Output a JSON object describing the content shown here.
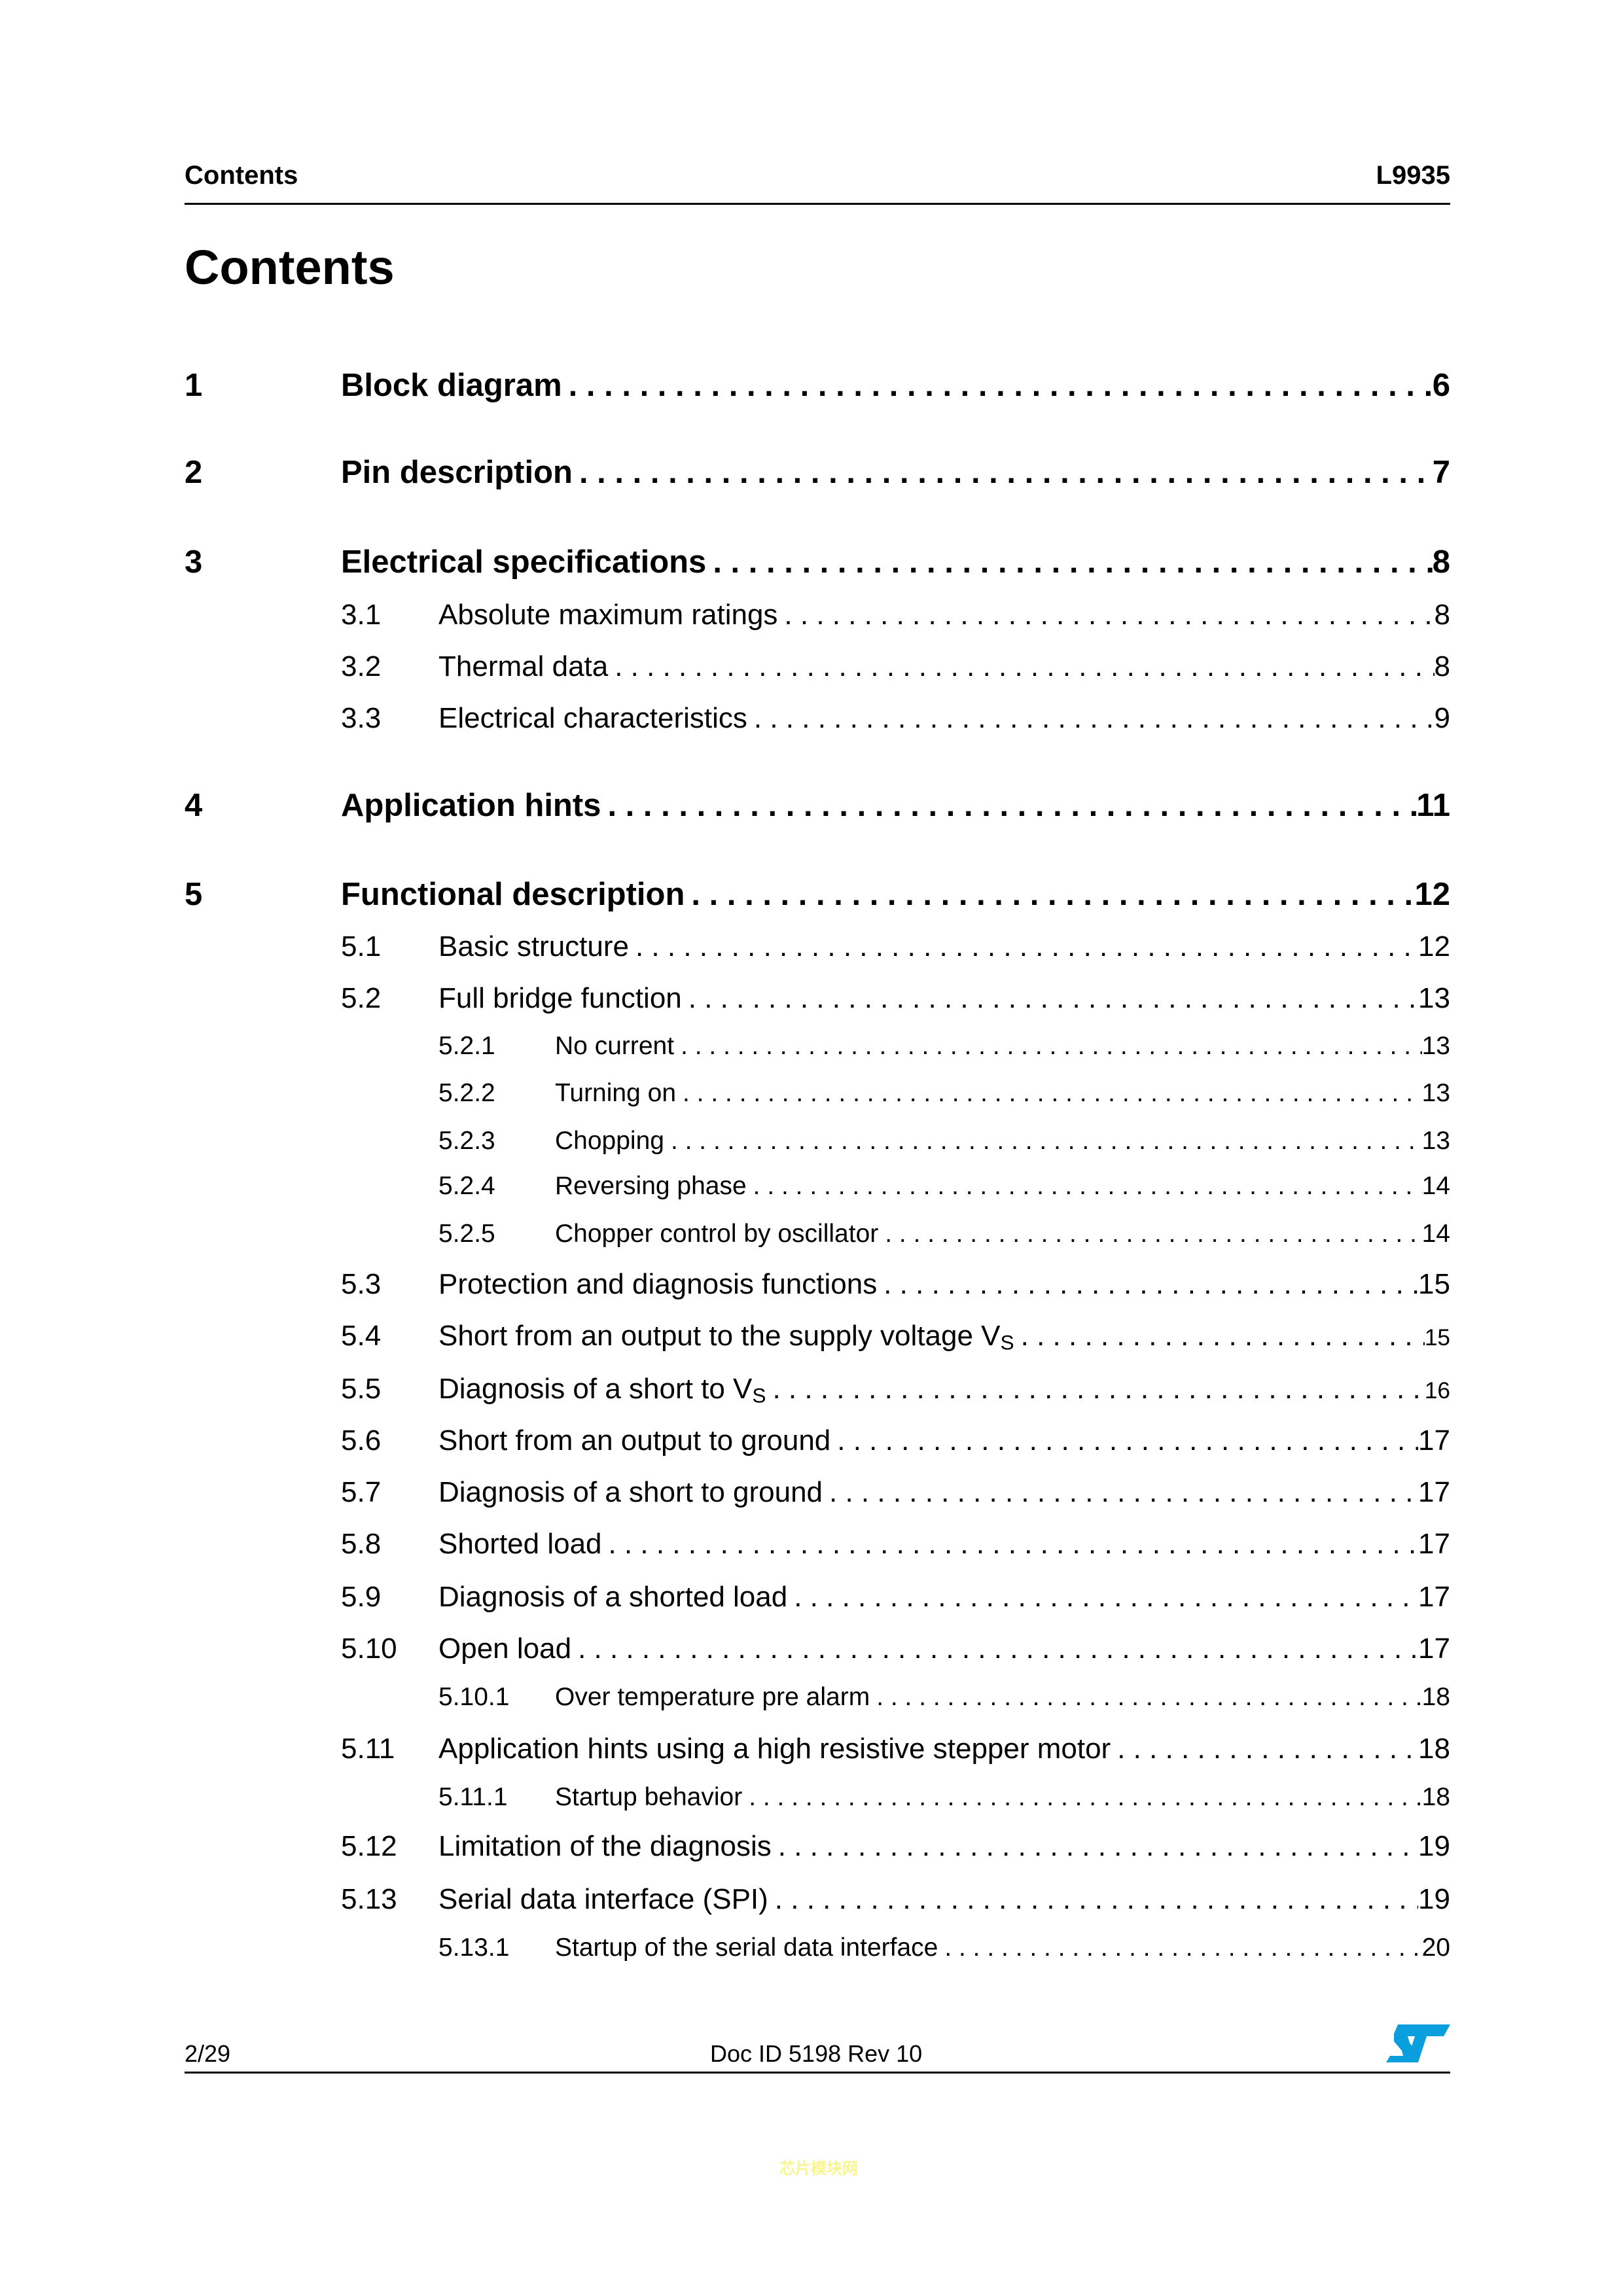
{
  "header": {
    "left": "Contents",
    "right": "L9935"
  },
  "page_title": "Contents",
  "toc": [
    {
      "level": 1,
      "number": "1",
      "title": "Block diagram",
      "page": "6"
    },
    {
      "level": 1,
      "number": "2",
      "title": "Pin description",
      "page": "7"
    },
    {
      "level": 1,
      "number": "3",
      "title": "Electrical specifications",
      "page": "8"
    },
    {
      "level": 2,
      "number": "3.1",
      "title": "Absolute maximum ratings",
      "page": "8"
    },
    {
      "level": 2,
      "number": "3.2",
      "title": "Thermal data",
      "page": "8"
    },
    {
      "level": 2,
      "number": "3.3",
      "title": "Electrical characteristics",
      "page": "9"
    },
    {
      "level": 1,
      "number": "4",
      "title": "Application hints",
      "page": "11"
    },
    {
      "level": 1,
      "number": "5",
      "title": "Functional description",
      "page": "12"
    },
    {
      "level": 2,
      "number": "5.1",
      "title": "Basic structure",
      "page": "12"
    },
    {
      "level": 2,
      "number": "5.2",
      "title": "Full bridge function",
      "page": "13"
    },
    {
      "level": 3,
      "number": "5.2.1",
      "title": "No current",
      "page": "13"
    },
    {
      "level": 3,
      "number": "5.2.2",
      "title": "Turning on",
      "page": "13"
    },
    {
      "level": 3,
      "number": "5.2.3",
      "title": "Chopping",
      "page": "13"
    },
    {
      "level": 3,
      "number": "5.2.4",
      "title": "Reversing phase",
      "page": "14"
    },
    {
      "level": 3,
      "number": "5.2.5",
      "title": "Chopper control by oscillator",
      "page": "14"
    },
    {
      "level": 2,
      "number": "5.3",
      "title": "Protection and diagnosis functions",
      "page": "15"
    },
    {
      "level": 2,
      "number": "5.4",
      "title": "Short from an output to the supply voltage V",
      "sub": "S",
      "page": "15"
    },
    {
      "level": 2,
      "number": "5.5",
      "title": "Diagnosis of a short to V",
      "sub": "S",
      "page": "16"
    },
    {
      "level": 2,
      "number": "5.6",
      "title": "Short from an output to ground",
      "page": "17"
    },
    {
      "level": 2,
      "number": "5.7",
      "title": "Diagnosis of a short to ground",
      "page": "17"
    },
    {
      "level": 2,
      "number": "5.8",
      "title": "Shorted load",
      "page": "17"
    },
    {
      "level": 2,
      "number": "5.9",
      "title": "Diagnosis of a shorted load",
      "page": "17"
    },
    {
      "level": 2,
      "number": "5.10",
      "title": "Open load",
      "page": "17"
    },
    {
      "level": 3,
      "number": "5.10.1",
      "title": "Over temperature pre alarm",
      "page": "18"
    },
    {
      "level": 2,
      "number": "5.11",
      "title": "Application hints using a high resistive stepper motor",
      "page": "18"
    },
    {
      "level": 3,
      "number": "5.11.1",
      "title": "Startup behavior",
      "page": "18"
    },
    {
      "level": 2,
      "number": "5.12",
      "title": "Limitation of the diagnosis",
      "page": "19"
    },
    {
      "level": 2,
      "number": "5.13",
      "title": "Serial data interface (SPI)",
      "page": "19"
    },
    {
      "level": 3,
      "number": "5.13.1",
      "title": "Startup of the serial data interface",
      "page": "20"
    }
  ],
  "footer": {
    "page": "2/29",
    "doc_id": "Doc ID 5198 Rev 10",
    "logo": "ST"
  },
  "watermark": "芯片模块网",
  "colors": {
    "logo": "#0a9fdc",
    "watermark": "#f8f590"
  }
}
